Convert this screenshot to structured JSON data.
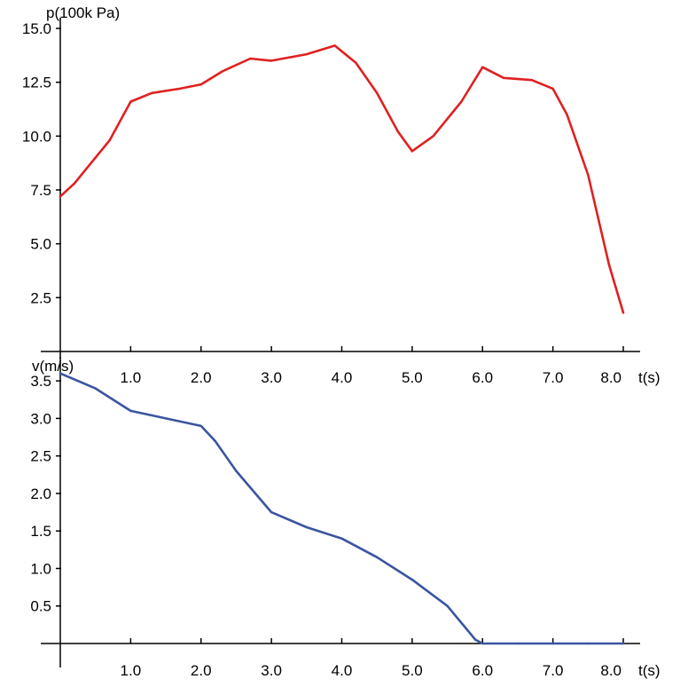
{
  "chart_data": [
    {
      "type": "line",
      "ylabel": "p(100k Pa)",
      "xlabel": "t(s)",
      "xlim": [
        0,
        8
      ],
      "ylim": [
        0,
        15
      ],
      "grid": false,
      "y_ticks": [
        "2.5",
        "5.0",
        "7.5",
        "10.0",
        "12.5",
        "15.0"
      ],
      "x_ticks": [
        "1.0",
        "2.0",
        "3.0",
        "4.0",
        "5.0",
        "6.0",
        "7.0",
        "8.0"
      ],
      "series": [
        {
          "color": "#e02020",
          "x": [
            0,
            0.2,
            0.5,
            0.7,
            1.0,
            1.3,
            1.7,
            2.0,
            2.3,
            2.7,
            3.0,
            3.5,
            3.9,
            4.2,
            4.5,
            4.8,
            5.0,
            5.3,
            5.7,
            6.0,
            6.3,
            6.7,
            7.0,
            7.2,
            7.5,
            7.8,
            8.0
          ],
          "y": [
            7.2,
            7.8,
            9.0,
            9.8,
            11.6,
            12.0,
            12.2,
            12.4,
            13.0,
            13.6,
            13.5,
            13.8,
            14.2,
            13.4,
            12.0,
            10.2,
            9.3,
            10.0,
            11.6,
            13.2,
            12.7,
            12.6,
            12.2,
            11.0,
            8.2,
            4.0,
            1.8
          ]
        }
      ]
    },
    {
      "type": "line",
      "ylabel": "v(m/s)",
      "xlabel": "t(s)",
      "xlim": [
        0,
        8
      ],
      "ylim": [
        0,
        3.75
      ],
      "grid": false,
      "y_ticks": [
        "0.5",
        "1.0",
        "1.5",
        "2.0",
        "2.5",
        "3.0",
        "3.5"
      ],
      "x_ticks": [
        "1.0",
        "2.0",
        "3.0",
        "4.0",
        "5.0",
        "6.0",
        "7.0",
        "8.0"
      ],
      "series": [
        {
          "color": "#3a55a0",
          "x": [
            0,
            0.5,
            1.0,
            1.5,
            2.0,
            2.2,
            2.5,
            3.0,
            3.5,
            4.0,
            4.5,
            5.0,
            5.5,
            5.9,
            6.0,
            6.5,
            7.0,
            7.5,
            8.0
          ],
          "y": [
            3.6,
            3.4,
            3.1,
            3.0,
            2.9,
            2.7,
            2.3,
            1.75,
            1.55,
            1.4,
            1.15,
            0.85,
            0.5,
            0.05,
            0.0,
            0.0,
            0.0,
            0.0,
            0.0
          ]
        }
      ]
    }
  ]
}
